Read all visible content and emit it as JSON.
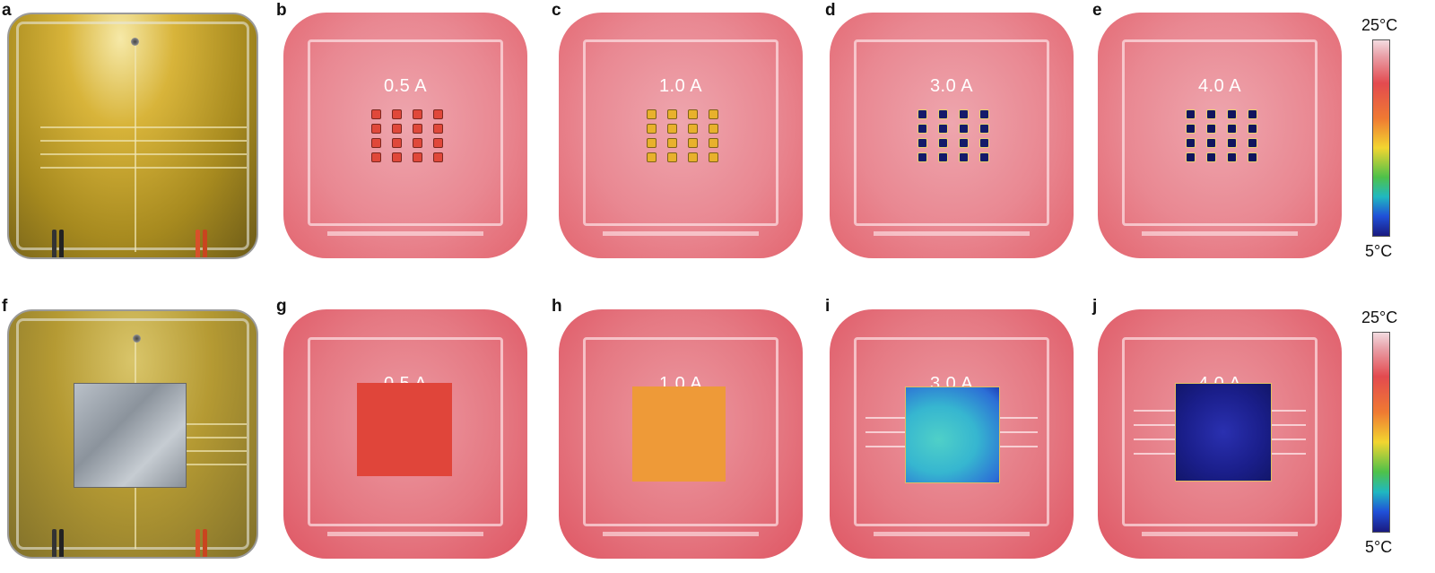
{
  "row1": {
    "photo_label": "a",
    "panels": [
      {
        "label": "b",
        "current": "0.5 A",
        "dot_color": "#e0483a"
      },
      {
        "label": "c",
        "current": "1.0 A",
        "dot_color": "#e8b12c"
      },
      {
        "label": "d",
        "current": "3.0 A",
        "dot_color": "#141a6a"
      },
      {
        "label": "e",
        "current": "4.0 A",
        "dot_color": "#10145e"
      }
    ]
  },
  "row2": {
    "photo_label": "f",
    "panels": [
      {
        "label": "g",
        "current": "0.5 A",
        "square_color": "#e0453a"
      },
      {
        "label": "h",
        "current": "1.0 A",
        "square_color": "#ee9a38"
      },
      {
        "label": "i",
        "current": "3.0 A",
        "square_color": "#3aa7d0"
      },
      {
        "label": "j",
        "current": "4.0 A",
        "square_color": "#1a1e8a"
      }
    ]
  },
  "colorbar": {
    "max_label": "25°C",
    "min_label": "5°C"
  },
  "colors": {
    "thermal_background": "#e98892"
  }
}
